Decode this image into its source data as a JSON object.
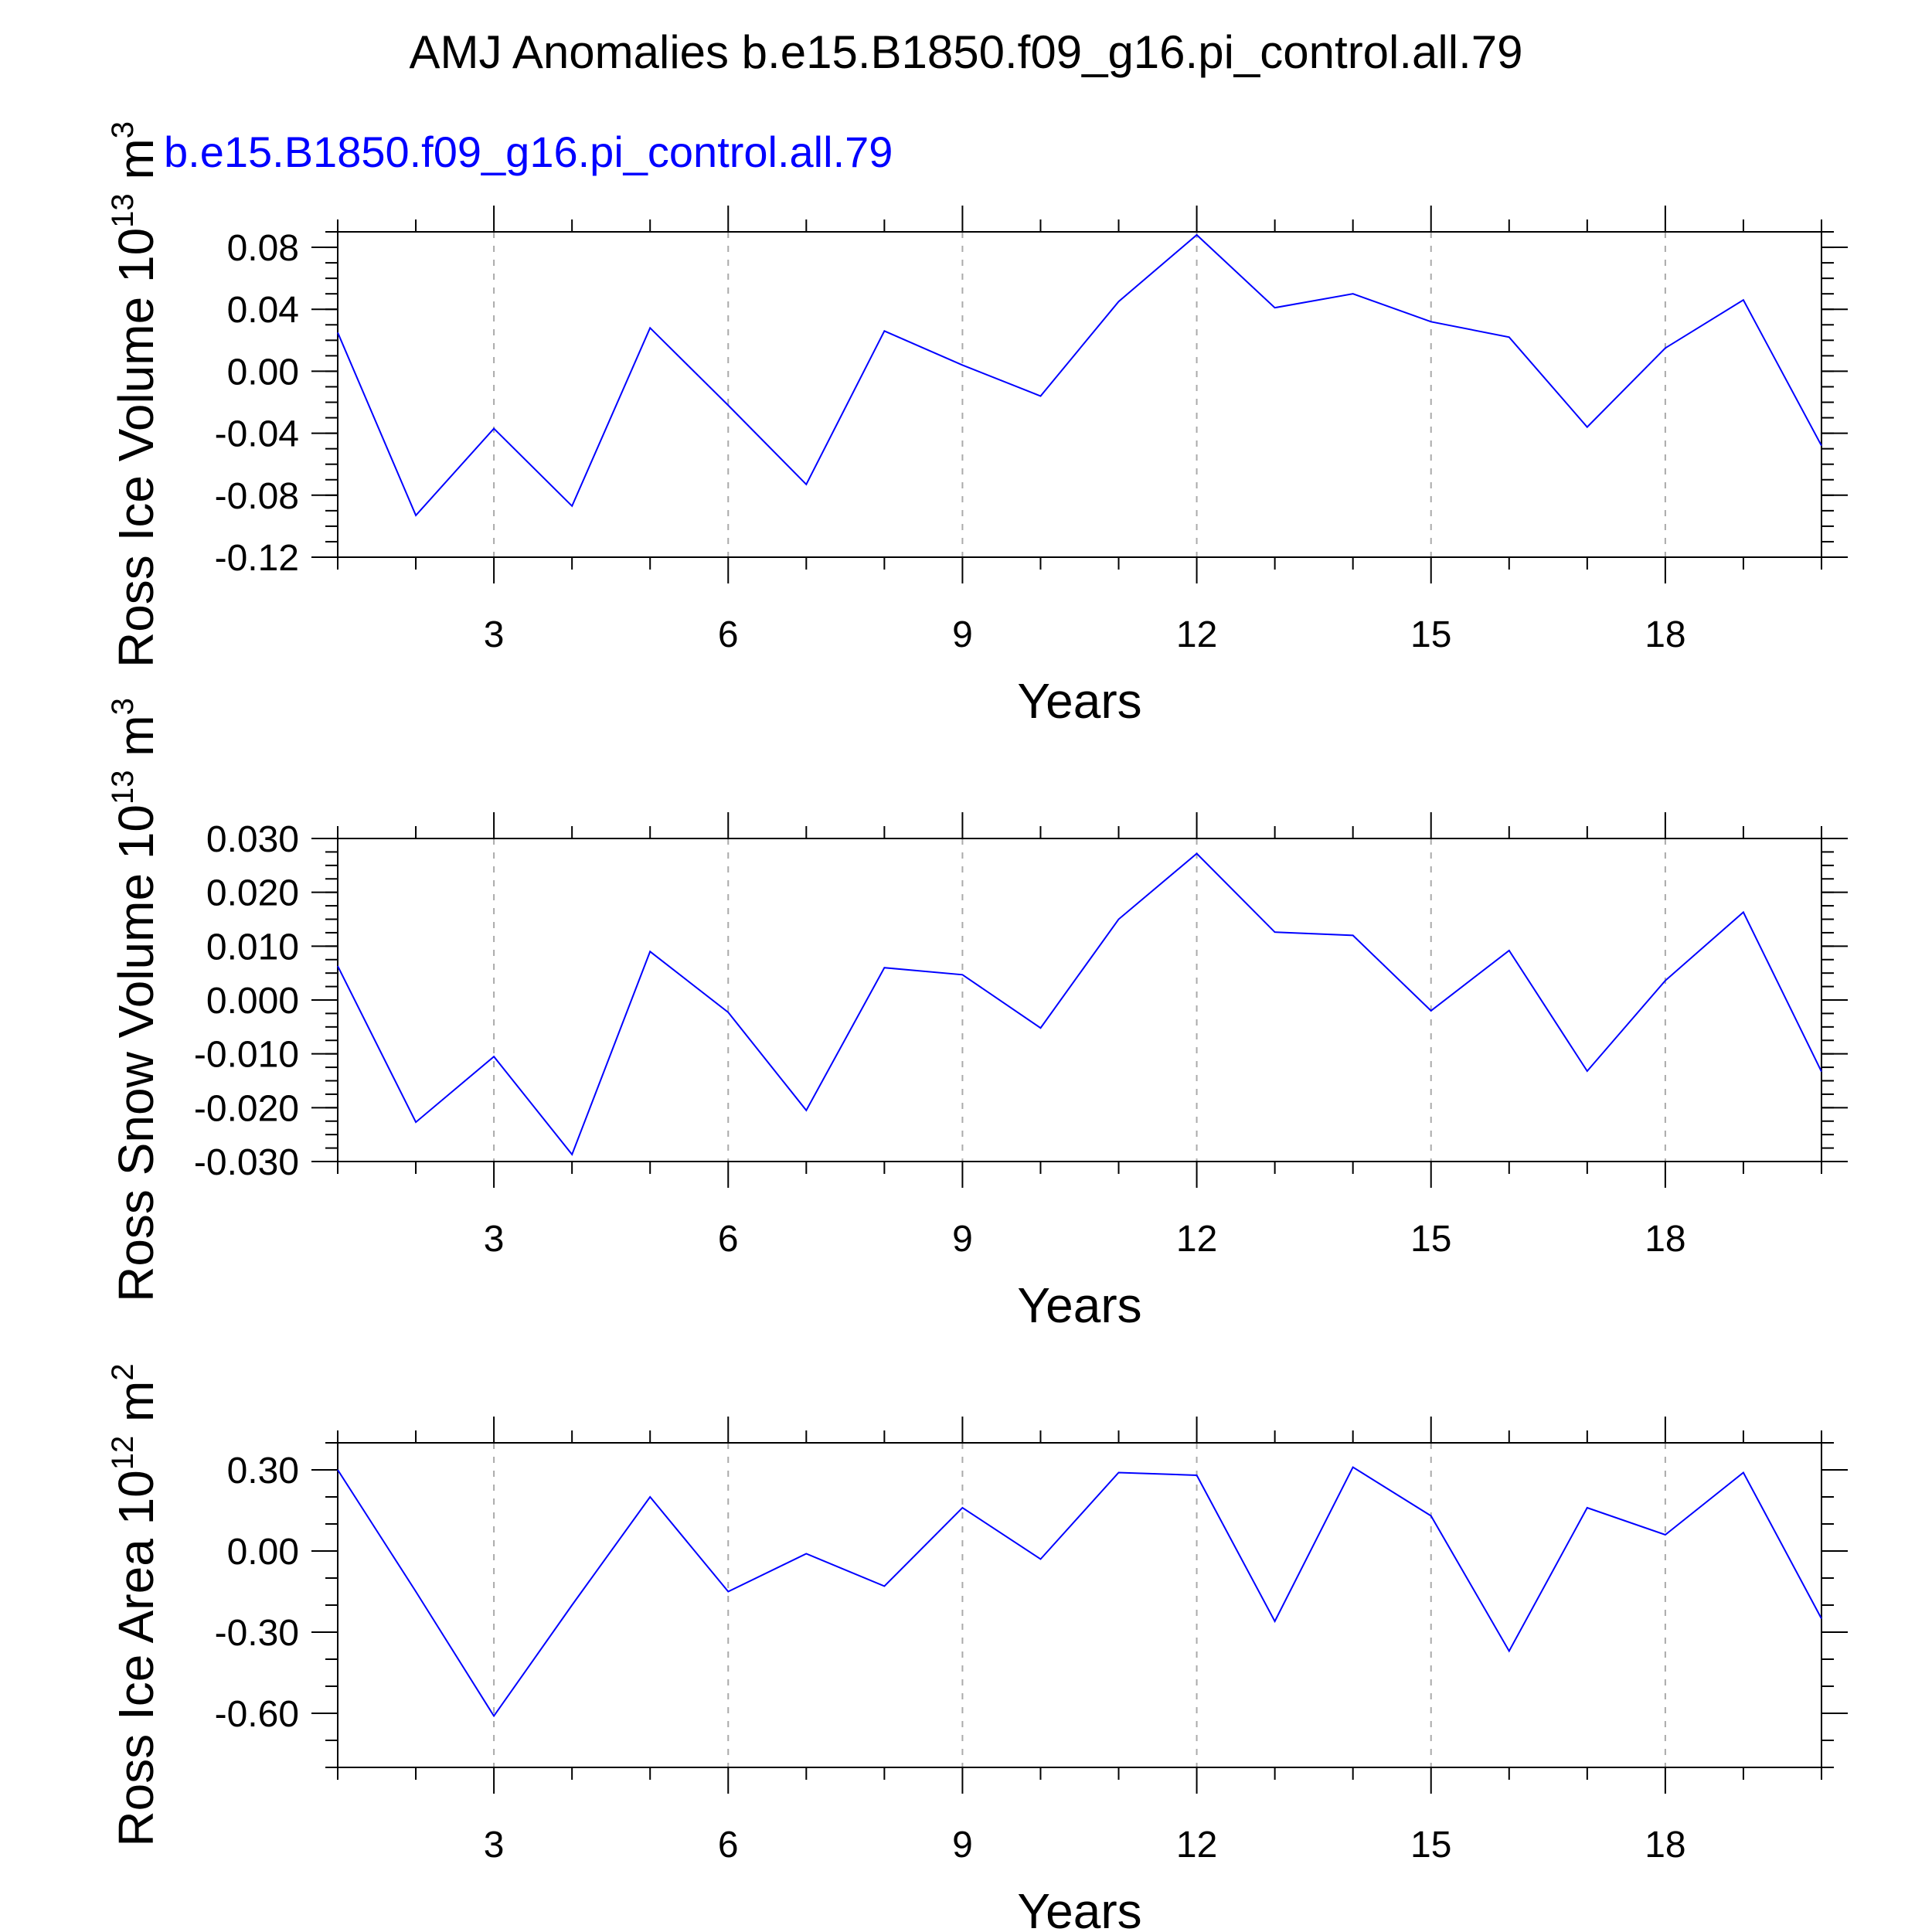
{
  "title": "AMJ Anomalies b.e15.B1850.f09_g16.pi_control.all.79",
  "legend": {
    "label": "b.e15.B1850.f09_g16.pi_control.all.79",
    "color": "#0000ff"
  },
  "colors": {
    "series": "#0000ff",
    "axis": "#000000",
    "grid": "#aaaaaa"
  },
  "chart_data": [
    {
      "type": "line",
      "ylabel_main": "Ross Ice Volume 10",
      "ylabel_exp": "13",
      "ylabel_unit": " m",
      "ylabel_unit_exp": "3",
      "xlabel": "Years",
      "xlim": [
        1,
        20
      ],
      "ylim": [
        -0.12,
        0.09
      ],
      "yticks": [
        -0.12,
        -0.08,
        -0.04,
        0.0,
        0.04,
        0.08
      ],
      "yticklabels": [
        "-0.12",
        "-0.08",
        "-0.04",
        "0.00",
        "0.04",
        "0.08"
      ],
      "yminor_step": 0.01,
      "xticks": [
        3,
        6,
        9,
        12,
        15,
        18
      ],
      "xticklabels": [
        "3",
        "6",
        "9",
        "12",
        "15",
        "18"
      ],
      "x": [
        1,
        2,
        3,
        4,
        5,
        6,
        7,
        8,
        9,
        10,
        11,
        12,
        13,
        14,
        15,
        16,
        17,
        18,
        19,
        20
      ],
      "values": [
        0.025,
        -0.093,
        -0.037,
        -0.087,
        0.028,
        -0.022,
        -0.073,
        0.026,
        0.004,
        -0.016,
        0.045,
        0.088,
        0.041,
        0.05,
        0.032,
        0.022,
        -0.036,
        0.015,
        0.046,
        -0.048
      ]
    },
    {
      "type": "line",
      "ylabel_main": "Ross Snow Volume 10",
      "ylabel_exp": "13",
      "ylabel_unit": " m",
      "ylabel_unit_exp": "3",
      "xlabel": "Years",
      "xlim": [
        1,
        20
      ],
      "ylim": [
        -0.03,
        0.03
      ],
      "yticks": [
        -0.03,
        -0.02,
        -0.01,
        0.0,
        0.01,
        0.02,
        0.03
      ],
      "yticklabels": [
        "-0.030",
        "-0.020",
        "-0.010",
        "0.000",
        "0.010",
        "0.020",
        "0.030"
      ],
      "yminor_step": 0.0025,
      "xticks": [
        3,
        6,
        9,
        12,
        15,
        18
      ],
      "xticklabels": [
        "3",
        "6",
        "9",
        "12",
        "15",
        "18"
      ],
      "x": [
        1,
        2,
        3,
        4,
        5,
        6,
        7,
        8,
        9,
        10,
        11,
        12,
        13,
        14,
        15,
        16,
        17,
        18,
        19,
        20
      ],
      "values": [
        0.0063,
        -0.0227,
        -0.0105,
        -0.0287,
        0.009,
        -0.0023,
        -0.0205,
        0.006,
        0.0047,
        -0.0052,
        0.015,
        0.0272,
        0.0126,
        0.012,
        -0.002,
        0.0092,
        -0.0132,
        0.0036,
        0.0163,
        -0.0133
      ]
    },
    {
      "type": "line",
      "ylabel_main": "Ross Ice Area 10",
      "ylabel_exp": "12",
      "ylabel_unit": " m",
      "ylabel_unit_exp": "2",
      "xlabel": "Years",
      "xlim": [
        1,
        20
      ],
      "ylim": [
        -0.8,
        0.4
      ],
      "yticks": [
        -0.6,
        -0.3,
        0.0,
        0.3
      ],
      "yticklabels": [
        "-0.60",
        "-0.30",
        "0.00",
        "0.30"
      ],
      "yminor_step": 0.1,
      "xticks": [
        3,
        6,
        9,
        12,
        15,
        18
      ],
      "xticklabels": [
        "3",
        "6",
        "9",
        "12",
        "15",
        "18"
      ],
      "x": [
        1,
        2,
        3,
        4,
        5,
        6,
        7,
        8,
        9,
        10,
        11,
        12,
        13,
        14,
        15,
        16,
        17,
        18,
        19,
        20
      ],
      "values": [
        0.3,
        -0.15,
        -0.61,
        -0.2,
        0.2,
        -0.15,
        -0.01,
        -0.13,
        0.16,
        -0.03,
        0.29,
        0.28,
        -0.26,
        0.31,
        0.13,
        -0.37,
        0.16,
        0.06,
        0.29,
        -0.25
      ]
    }
  ]
}
